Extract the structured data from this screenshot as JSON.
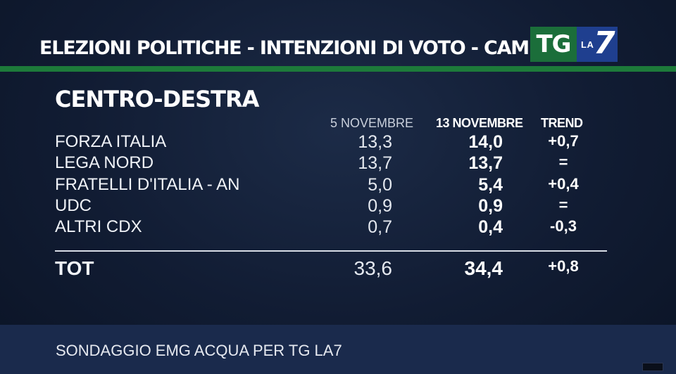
{
  "header": {
    "title": "ELEZIONI POLITICHE - INTENZIONI DI VOTO - CAMERA"
  },
  "logo": {
    "tg": "TG",
    "la": "LA",
    "seven": "7"
  },
  "section": {
    "title": "CENTRO-DESTRA"
  },
  "columns": {
    "prev": "5 NOVEMBRE",
    "current": "13 NOVEMBRE",
    "trend": "TREND"
  },
  "rows": [
    {
      "name": "FORZA ITALIA",
      "prev": "13,3",
      "current": "14,0",
      "trend": "+0,7"
    },
    {
      "name": "LEGA NORD",
      "prev": "13,7",
      "current": "13,7",
      "trend": "="
    },
    {
      "name": "FRATELLI D'ITALIA - AN",
      "prev": "5,0",
      "current": "5,4",
      "trend": "+0,4"
    },
    {
      "name": "UDC",
      "prev": "0,9",
      "current": "0,9",
      "trend": "="
    },
    {
      "name": "ALTRI CDX",
      "prev": "0,7",
      "current": "0,4",
      "trend": "-0,3"
    }
  ],
  "total": {
    "name": "TOT",
    "prev": "33,6",
    "current": "34,4",
    "trend": "+0,8"
  },
  "footer": {
    "source": "SONDAGGIO EMG ACQUA PER TG LA7"
  },
  "colors": {
    "accent_green": "#1d7a3a",
    "logo_blue": "#1f3f8f",
    "background": "#111c33"
  }
}
